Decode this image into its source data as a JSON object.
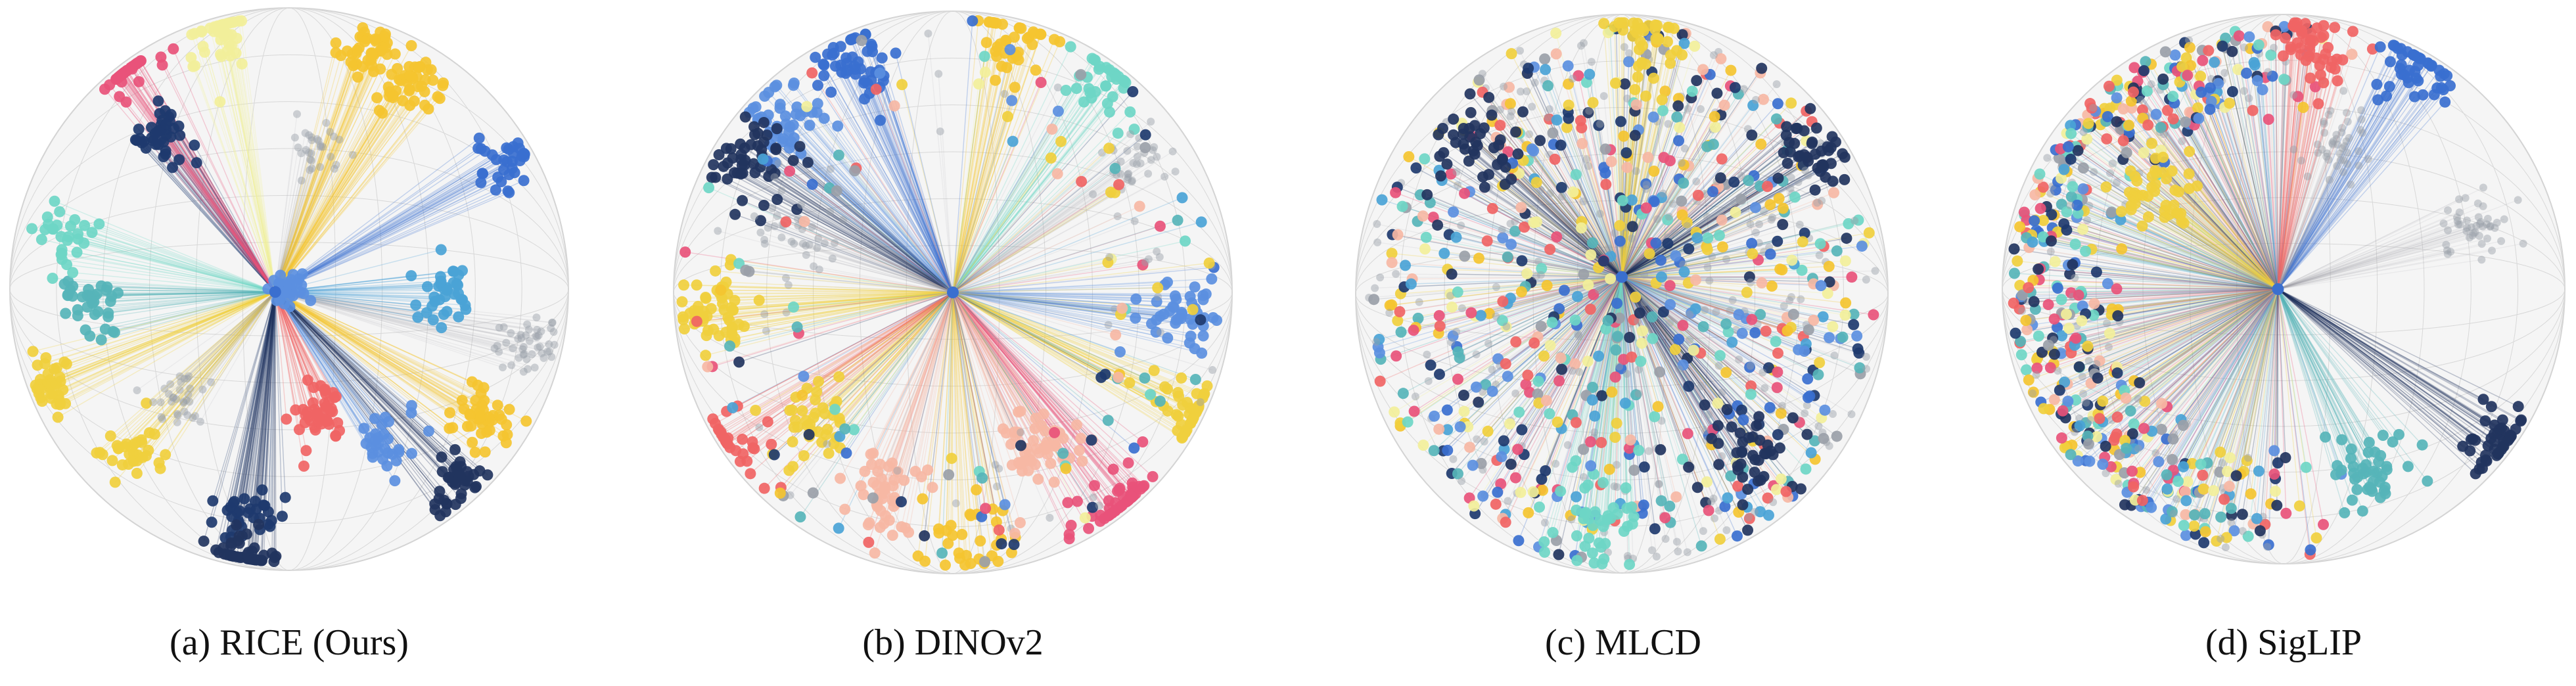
{
  "figure": {
    "panels": [
      {
        "id": "a",
        "caption": "(a) RICE (Ours)",
        "layout": "clustered",
        "seed": 11
      },
      {
        "id": "b",
        "caption": "(b) DINOv2",
        "layout": "rim-clusters",
        "seed": 23
      },
      {
        "id": "c",
        "caption": "(c) MLCD",
        "layout": "scattered",
        "seed": 37
      },
      {
        "id": "d",
        "caption": "(d) SigLIP",
        "layout": "one-sided",
        "seed": 53
      }
    ],
    "palette": [
      "#f0cf3d",
      "#f4c430",
      "#f06464",
      "#e8527a",
      "#3a6fcf",
      "#5b8fe0",
      "#1e3a6e",
      "#22345e",
      "#6ed6c6",
      "#56b4b8",
      "#f6b7a4",
      "#f2ef9a",
      "#9aa0a8",
      "#4aa3d6"
    ],
    "sphere_fill": "#ececec",
    "sphere_edge": "#d4d4d4"
  }
}
